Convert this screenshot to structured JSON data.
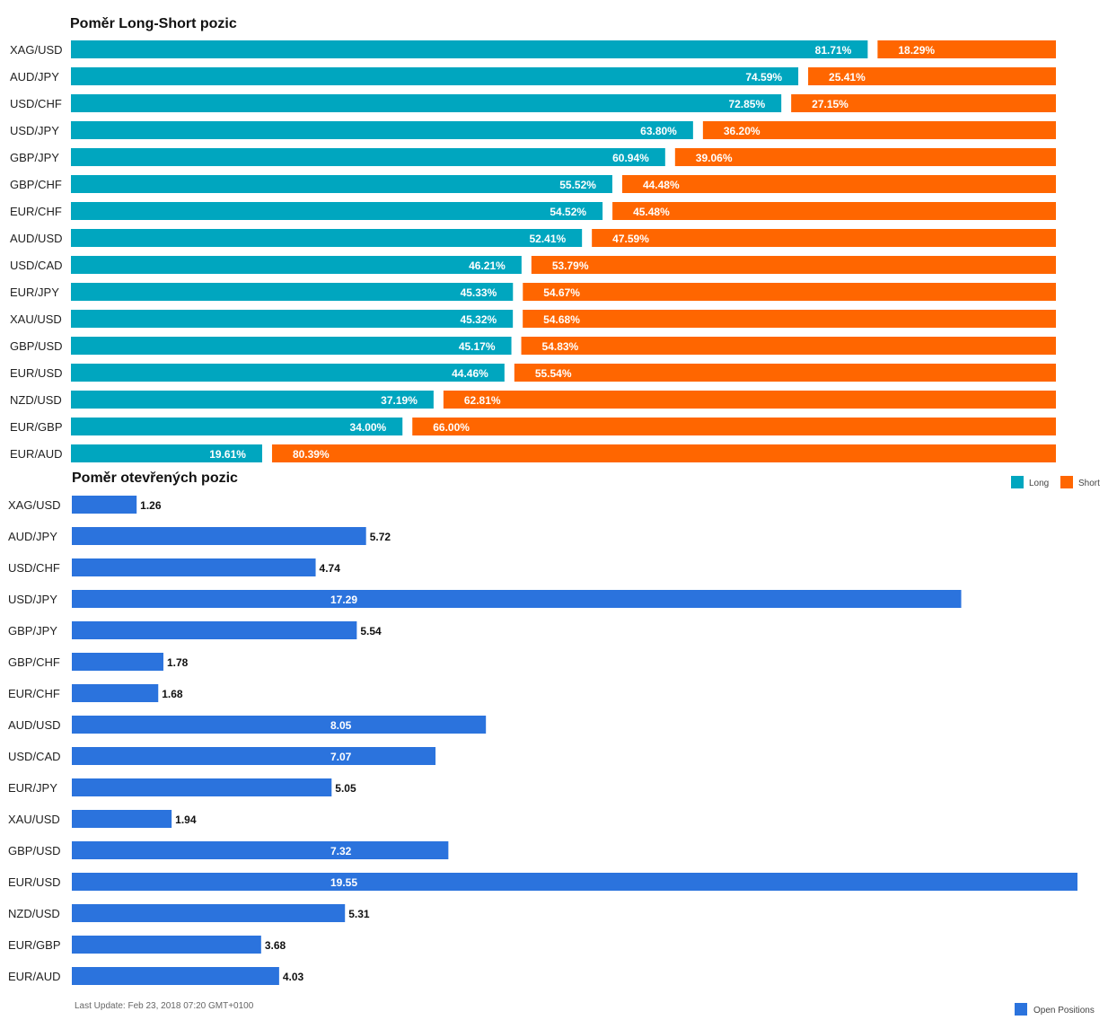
{
  "chart_data": [
    {
      "type": "bar",
      "orientation": "horizontal",
      "stacked": "percent",
      "title": "Poměr Long-Short pozic",
      "categories": [
        "XAG/USD",
        "AUD/JPY",
        "USD/CHF",
        "USD/JPY",
        "GBP/JPY",
        "GBP/CHF",
        "EUR/CHF",
        "AUD/USD",
        "USD/CAD",
        "EUR/JPY",
        "XAU/USD",
        "GBP/USD",
        "EUR/USD",
        "NZD/USD",
        "EUR/GBP",
        "EUR/AUD"
      ],
      "series": [
        {
          "name": "Long",
          "color": "#00a6bf",
          "values": [
            81.71,
            74.59,
            72.85,
            63.8,
            60.94,
            55.52,
            54.52,
            52.41,
            46.21,
            45.33,
            45.32,
            45.17,
            44.46,
            37.19,
            34.0,
            19.61
          ]
        },
        {
          "name": "Short",
          "color": "#ff6600",
          "values": [
            18.29,
            25.41,
            27.15,
            36.2,
            39.06,
            44.48,
            45.48,
            47.59,
            53.79,
            54.67,
            54.68,
            54.83,
            55.54,
            62.81,
            66.0,
            80.39
          ]
        }
      ],
      "value_suffix": "%",
      "legend": "right",
      "grid": false
    },
    {
      "type": "bar",
      "orientation": "horizontal",
      "title": "Poměr otevřených pozic",
      "categories": [
        "XAG/USD",
        "AUD/JPY",
        "USD/CHF",
        "USD/JPY",
        "GBP/JPY",
        "GBP/CHF",
        "EUR/CHF",
        "AUD/USD",
        "USD/CAD",
        "EUR/JPY",
        "XAU/USD",
        "GBP/USD",
        "EUR/USD",
        "NZD/USD",
        "EUR/GBP",
        "EUR/AUD"
      ],
      "series": [
        {
          "name": "Open Positions",
          "color": "#2b73dd",
          "values": [
            1.26,
            5.72,
            4.74,
            17.29,
            5.54,
            1.78,
            1.68,
            8.05,
            7.07,
            5.05,
            1.94,
            7.32,
            19.55,
            5.31,
            3.68,
            4.03
          ]
        }
      ],
      "xlim": [
        0,
        19.55
      ],
      "legend": "bottom-right",
      "grid": false
    }
  ],
  "footer": {
    "last_update": "Last Update: Feb 23, 2018 07:20 GMT+0100"
  }
}
